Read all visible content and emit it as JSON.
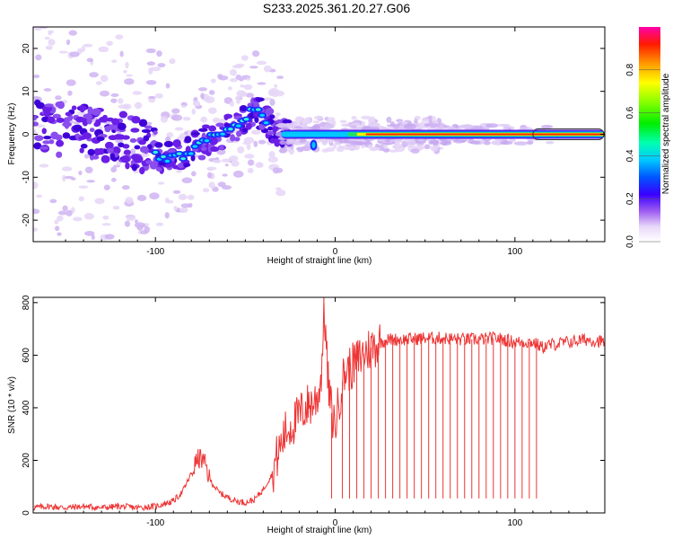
{
  "figure": {
    "title": "S233.2025.361.20.27.G06"
  },
  "chart_data": [
    {
      "type": "heatmap",
      "title": "S233.2025.361.20.27.G06",
      "xlabel": "Height of straight line (km)",
      "ylabel": "Frequency (Hz)",
      "xlim": [
        -168,
        150
      ],
      "ylim": [
        -25,
        25
      ],
      "x_ticks": [
        -100,
        0,
        100
      ],
      "y_ticks": [
        -20,
        -10,
        0,
        10,
        20
      ],
      "colorbar": {
        "label": "Normalized spectral amplitude",
        "range": [
          0,
          1
        ],
        "ticks": [
          0.0,
          0.2,
          0.4,
          0.6,
          0.8
        ]
      },
      "ridge": [
        {
          "x": -168,
          "y": 2
        },
        {
          "x": -150,
          "y": 1
        },
        {
          "x": -130,
          "y": 0
        },
        {
          "x": -110,
          "y": -2
        },
        {
          "x": -95,
          "y": -6
        },
        {
          "x": -85,
          "y": -5
        },
        {
          "x": -70,
          "y": -1
        },
        {
          "x": -55,
          "y": 2
        },
        {
          "x": -45,
          "y": 6
        },
        {
          "x": -38,
          "y": 3
        },
        {
          "x": -30,
          "y": 0
        },
        {
          "x": -15,
          "y": 0
        },
        {
          "x": 0,
          "y": 0
        },
        {
          "x": 50,
          "y": 0
        },
        {
          "x": 100,
          "y": 0
        },
        {
          "x": 150,
          "y": 0
        }
      ]
    },
    {
      "type": "line",
      "xlabel": "Height of straight line (km)",
      "ylabel": "SNR (10 * v/v)",
      "xlim": [
        -168,
        150
      ],
      "ylim": [
        0,
        820
      ],
      "x_ticks": [
        -100,
        0,
        100
      ],
      "y_ticks": [
        0,
        200,
        400,
        600,
        800
      ],
      "color": "#ee3333",
      "series": [
        {
          "x": [
            -168,
            -160,
            -150,
            -140,
            -130,
            -120,
            -110,
            -100,
            -90,
            -85,
            -80,
            -77,
            -75,
            -72,
            -70,
            -65,
            -60,
            -55,
            -50,
            -45,
            -40,
            -35,
            -33,
            -30,
            -28,
            -25,
            -22,
            -20,
            -18,
            -15,
            -12,
            -10,
            -8,
            -6,
            -4,
            -2,
            0,
            2,
            4,
            6,
            10,
            15,
            20,
            25,
            30,
            40,
            50,
            60,
            70,
            80,
            90,
            100,
            110,
            115,
            120,
            130,
            140,
            150
          ],
          "y": [
            20,
            25,
            20,
            25,
            20,
            25,
            20,
            25,
            45,
            80,
            150,
            200,
            210,
            180,
            130,
            80,
            60,
            45,
            40,
            50,
            90,
            150,
            200,
            260,
            300,
            330,
            350,
            370,
            390,
            410,
            420,
            440,
            500,
            780,
            500,
            380,
            330,
            420,
            500,
            540,
            560,
            600,
            630,
            650,
            660,
            660,
            665,
            665,
            660,
            660,
            665,
            650,
            650,
            630,
            640,
            650,
            660,
            650
          ]
        }
      ],
      "dropouts_x": [
        -2,
        4,
        8,
        12,
        16,
        20,
        24,
        28,
        32,
        36,
        40,
        44,
        48,
        52,
        56,
        60,
        64,
        68,
        72,
        76,
        80,
        84,
        88,
        92,
        96,
        100,
        104,
        108,
        112
      ]
    }
  ]
}
